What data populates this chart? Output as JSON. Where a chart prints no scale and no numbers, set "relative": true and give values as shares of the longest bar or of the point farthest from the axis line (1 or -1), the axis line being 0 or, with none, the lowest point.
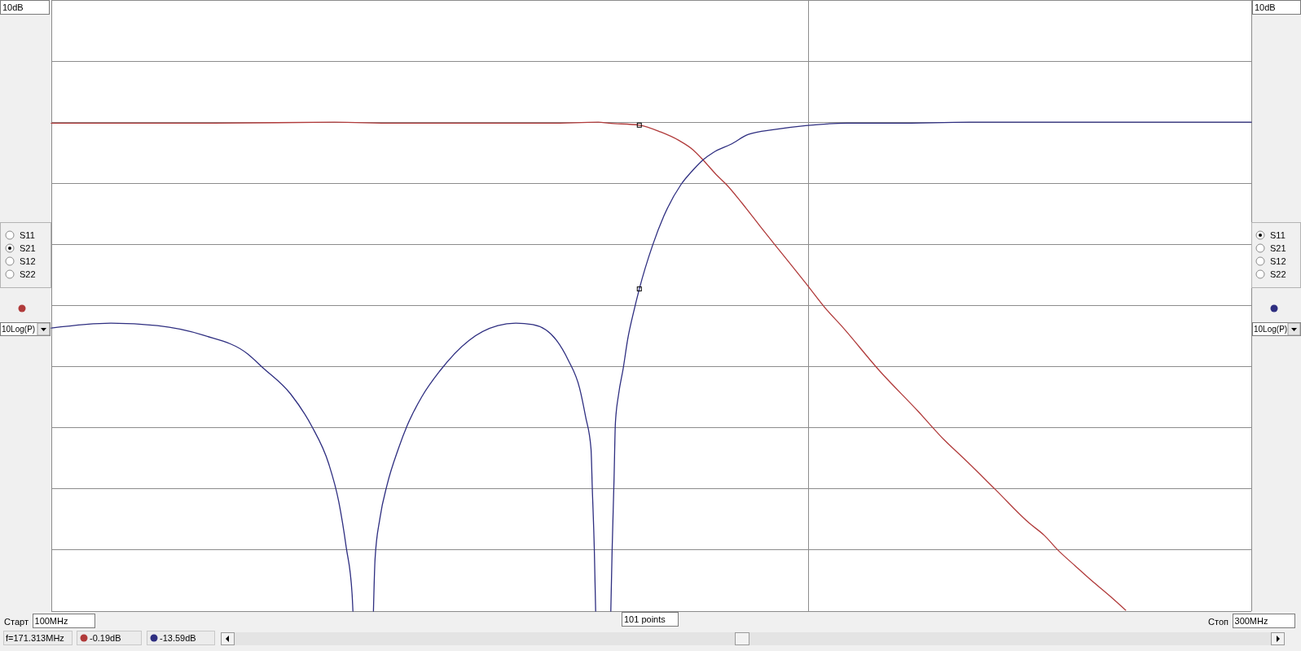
{
  "chart_data": {
    "type": "line",
    "relative": true,
    "log": "x",
    "grid": true,
    "xlim": [
      100,
      300
    ],
    "xticks": [
      {
        "value": 100,
        "label": "100MHz"
      },
      {
        "value": 200,
        "label": null
      },
      {
        "value": 300,
        "label": "300MHz"
      }
    ],
    "series": [
      {
        "color": "#b03a3a",
        "x": [
          100,
          116.0,
          129.6,
          136.9,
          147.7,
          157.9,
          165.0,
          166.6,
          171.313,
          174.7,
          177.6,
          180.0,
          181.6,
          183.8,
          185.5,
          188.3,
          191.3,
          194.4,
          199.5,
          203.4,
          206.1,
          213.5,
          221.1,
          226.6,
          230.6,
          237.3,
          244.8,
          248.2,
          251.3,
          255.4,
          258.6,
          263.7,
          267.4
        ],
        "values": [
          0.998,
          0.998,
          1,
          0.998,
          0.998,
          0.998,
          1,
          0.998,
          0.994,
          0.98,
          0.963,
          0.943,
          0.923,
          0.893,
          0.873,
          0.833,
          0.788,
          0.743,
          0.671,
          0.616,
          0.584,
          0.491,
          0.409,
          0.349,
          0.312,
          0.249,
          0.18,
          0.155,
          0.125,
          0.092,
          0.067,
          0.03,
          0.002
        ]
      },
      {
        "color": "#2e2e80",
        "x": [
          100,
          105.6,
          110.2,
          115.0,
          119.7,
          121.3,
          124.5,
          126.9,
          128.9,
          130.1,
          131.0,
          131.7,
          131.8,
          133.0,
          134.3,
          134.5,
          135.1,
          136.0,
          137.4,
          138.5,
          140.4,
          142.7,
          146.6,
          150.5,
          153.0,
          155.4,
          158.8,
          160.5,
          162.2,
          163.1,
          163.9,
          164.1,
          164.4,
          164.6,
          165.7,
          166.9,
          167.1,
          167.4,
          167.6,
          168.1,
          168.8,
          169.5,
          170.5,
          171.313,
          173.4,
          175.2,
          178.0,
          180.0,
          181.6,
          183.3,
          186.3,
          189.3,
          193.9,
          199.5,
          207.2,
          216.7,
          231.8,
          300
        ],
        "values": [
          0.579,
          0.589,
          0.584,
          0.564,
          0.526,
          0.499,
          0.444,
          0.379,
          0.302,
          0.224,
          0.13,
          0.035,
          0,
          null,
          0,
          0.107,
          0.19,
          0.259,
          0.332,
          0.379,
          0.439,
          0.491,
          0.554,
          0.584,
          0.589,
          0.586,
          0.554,
          0.514,
          0.456,
          0.397,
          0.332,
          0.249,
          0.125,
          0,
          null,
          0,
          0.125,
          0.272,
          0.384,
          0.444,
          0.496,
          0.556,
          0.616,
          0.659,
          0.748,
          0.808,
          0.873,
          0.903,
          0.923,
          0.938,
          0.955,
          0.975,
          0.985,
          0.993,
          0.998,
          0.998,
          1,
          1
        ]
      },
      {
        "type": "scatter",
        "marker": "square",
        "color": "#000000",
        "x": [
          171.313,
          171.313
        ],
        "values": [
          0.994,
          0.659
        ]
      }
    ],
    "annotations": [
      "10dB",
      "S11",
      "S21",
      "S12",
      "S22",
      "10Log(P)",
      "Старт",
      "101 points",
      "Стоп",
      "f=171.313MHz",
      "-0.19dB",
      "-13.59dB"
    ]
  }
}
